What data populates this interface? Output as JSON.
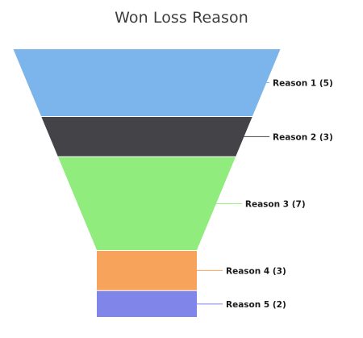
{
  "chart_data": {
    "type": "funnel",
    "title": "Won Loss Reason",
    "categories": [
      "Reason 1",
      "Reason 2",
      "Reason 3",
      "Reason 4",
      "Reason 5"
    ],
    "values": [
      5,
      3,
      7,
      3,
      2
    ],
    "labels": [
      "Reason 1 (5)",
      "Reason 2 (3)",
      "Reason 3 (7)",
      "Reason 4 (3)",
      "Reason 5 (2)"
    ],
    "colors": [
      "#7cb5ec",
      "#434348",
      "#90ed7d",
      "#f7a35c",
      "#8085e9"
    ],
    "legend": "none",
    "grid": false
  }
}
